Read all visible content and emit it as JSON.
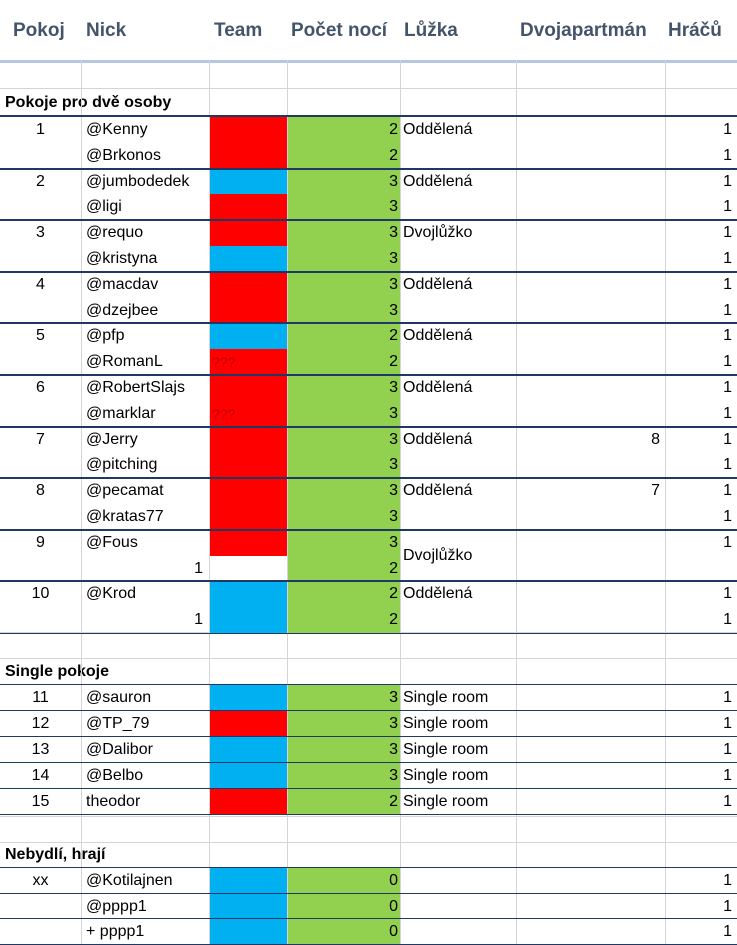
{
  "colors": {
    "red": "#ff0000",
    "blue": "#00b0f0",
    "green": "#92d050",
    "header": "#44546a"
  },
  "headers": {
    "pokoj": "Pokoj",
    "nick": "Nick",
    "team": "Team",
    "pocet": "Počet nocí",
    "luzka": "Lůžka",
    "dvoj": "Dvojapartmán",
    "hracu": "Hráčů"
  },
  "sections": {
    "double": "Pokoje pro dvě osoby",
    "single": "Single pokoje",
    "nebydli": "Nebydlí, hrají"
  },
  "rows": [
    {
      "pokoj": "1",
      "nick": "@Kenny",
      "team": "red",
      "teamText": "",
      "nights": "2",
      "luzka": "Oddělená",
      "dvoj": "",
      "hracu": "1"
    },
    {
      "pokoj": "",
      "nick": "@Brkonos",
      "team": "red",
      "teamText": "",
      "nights": "2",
      "luzka": "",
      "dvoj": "",
      "hracu": "1"
    },
    {
      "pokoj": "2",
      "nick": "@jumbodedek",
      "team": "blue",
      "teamText": "",
      "nights": "3",
      "luzka": "Oddělená",
      "dvoj": "",
      "hracu": "1"
    },
    {
      "pokoj": "",
      "nick": "@ligi",
      "team": "red",
      "teamText": "",
      "nights": "3",
      "luzka": "",
      "dvoj": "",
      "hracu": "1"
    },
    {
      "pokoj": "3",
      "nick": "@requo",
      "team": "red",
      "teamText": "",
      "nights": "3",
      "luzka": "Dvojlůžko",
      "dvoj": "",
      "hracu": "1"
    },
    {
      "pokoj": "",
      "nick": "@kristyna",
      "team": "blue",
      "teamText": "",
      "nights": "3",
      "luzka": "",
      "dvoj": "",
      "hracu": "1"
    },
    {
      "pokoj": "4",
      "nick": "@macdav",
      "team": "red",
      "teamText": "",
      "nights": "3",
      "luzka": "Oddělená",
      "dvoj": "",
      "hracu": "1"
    },
    {
      "pokoj": "",
      "nick": "@dzejbee",
      "team": "red",
      "teamText": "",
      "nights": "3",
      "luzka": "",
      "dvoj": "",
      "hracu": "1"
    },
    {
      "pokoj": "5",
      "nick": "@pfp",
      "team": "blue",
      "teamText": "",
      "nights": "2",
      "luzka": "Oddělená",
      "dvoj": "",
      "hracu": "1"
    },
    {
      "pokoj": "",
      "nick": "@RomanL",
      "team": "red",
      "teamText": "???",
      "nights": "2",
      "luzka": "",
      "dvoj": "",
      "hracu": "1"
    },
    {
      "pokoj": "6",
      "nick": "@RobertSlajs",
      "team": "red",
      "teamText": "",
      "nights": "3",
      "luzka": "Oddělená",
      "dvoj": "",
      "hracu": "1"
    },
    {
      "pokoj": "",
      "nick": "@marklar",
      "team": "red",
      "teamText": "???",
      "nights": "3",
      "luzka": "",
      "dvoj": "",
      "hracu": "1"
    },
    {
      "pokoj": "7",
      "nick": "@Jerry",
      "team": "red",
      "teamText": "",
      "nights": "3",
      "luzka": "Oddělená",
      "dvoj": "8",
      "hracu": "1"
    },
    {
      "pokoj": "",
      "nick": "@pitching",
      "team": "red",
      "teamText": "",
      "nights": "3",
      "luzka": "",
      "dvoj": "",
      "hracu": "1"
    },
    {
      "pokoj": "8",
      "nick": "@pecamat",
      "team": "red",
      "teamText": "",
      "nights": "3",
      "luzka": "Oddělená",
      "dvoj": "7",
      "hracu": "1"
    },
    {
      "pokoj": "",
      "nick": "@kratas77",
      "team": "red",
      "teamText": "",
      "nights": "3",
      "luzka": "",
      "dvoj": "",
      "hracu": "1"
    },
    {
      "pokoj": "9",
      "nick": "@Fous",
      "team": "red",
      "teamText": "",
      "nights": "3",
      "luzka": "",
      "dvoj": "",
      "hracu": "1"
    },
    {
      "pokoj": "",
      "nick": "1",
      "team": "white",
      "teamText": "",
      "nights": "2",
      "luzka": "",
      "dvoj": "",
      "hracu": ""
    },
    {
      "pokoj": "10",
      "nick": "@Krod",
      "team": "blue",
      "teamText": "",
      "nights": "2",
      "luzka": "Oddělená",
      "dvoj": "",
      "hracu": "1"
    },
    {
      "pokoj": "",
      "nick": "1",
      "team": "blue",
      "teamText": "",
      "nights": "2",
      "luzka": "",
      "dvoj": "",
      "hracu": "1"
    }
  ],
  "merged9": "Dvojlůžko",
  "singles": [
    {
      "pokoj": "11",
      "nick": "@sauron",
      "team": "blue",
      "nights": "3",
      "luzka": "Single room",
      "hracu": "1"
    },
    {
      "pokoj": "12",
      "nick": "@TP_79",
      "team": "red",
      "nights": "3",
      "luzka": "Single room",
      "hracu": "1"
    },
    {
      "pokoj": "13",
      "nick": "@Dalibor",
      "team": "blue",
      "nights": "3",
      "luzka": "Single room",
      "hracu": "1"
    },
    {
      "pokoj": "14",
      "nick": "@Belbo",
      "team": "blue",
      "nights": "3",
      "luzka": "Single room",
      "hracu": "1"
    },
    {
      "pokoj": "15",
      "nick": "theodor",
      "team": "red",
      "nights": "2",
      "luzka": "Single room",
      "hracu": "1"
    }
  ],
  "nebydli": [
    {
      "pokoj": "xx",
      "nick": "@Kotilajnen",
      "team": "blue",
      "nights": "0",
      "hracu": "1"
    },
    {
      "pokoj": "",
      "nick": "@pppp1",
      "team": "blue",
      "nights": "0",
      "hracu": "1"
    },
    {
      "pokoj": "",
      "nick": "+ pppp1",
      "team": "blue",
      "nights": "0",
      "hracu": "1"
    }
  ]
}
